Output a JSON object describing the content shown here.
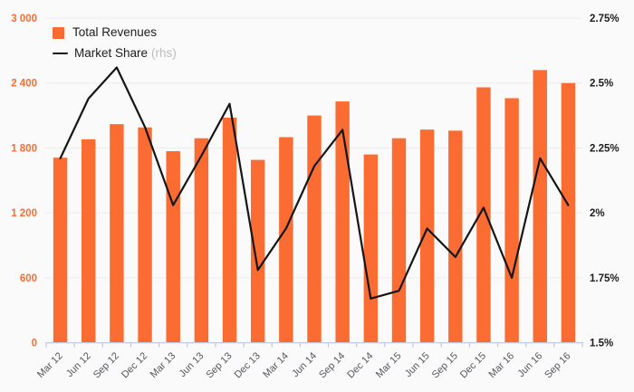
{
  "chart_data": {
    "type": "combo-bar-line",
    "title": "",
    "categories": [
      "Mar 12",
      "Jun 12",
      "Sep 12",
      "Dec 12",
      "Mar 13",
      "Jun 13",
      "Sep 13",
      "Dec 13",
      "Mar 14",
      "Jun 14",
      "Sep 14",
      "Dec 14",
      "Mar 15",
      "Jun 15",
      "Sep 15",
      "Dec 15",
      "Mar 16",
      "Jun 16",
      "Sep 16"
    ],
    "series": [
      {
        "name": "Total Revenues",
        "type": "bar",
        "axis": "left",
        "values": [
          1710,
          1880,
          2020,
          1990,
          1770,
          1890,
          2080,
          1690,
          1900,
          2100,
          2230,
          1740,
          1890,
          1970,
          1960,
          2360,
          2260,
          2520,
          2400
        ]
      },
      {
        "name": "Market Share",
        "type": "line",
        "axis": "right",
        "values": [
          2.21,
          2.44,
          2.56,
          2.33,
          2.03,
          2.22,
          2.42,
          1.78,
          1.94,
          2.18,
          2.32,
          1.67,
          1.7,
          1.94,
          1.83,
          2.02,
          1.75,
          2.21,
          2.03
        ]
      }
    ],
    "left_axis": {
      "min": 0,
      "max": 3000,
      "ticks": [
        "0",
        "600",
        "1 200",
        "1 800",
        "2 400",
        "3 000"
      ]
    },
    "right_axis": {
      "min": 1.5,
      "max": 2.75,
      "ticks": [
        "1.5%",
        "1.75%",
        "2%",
        "2.25%",
        "2.5%",
        "2.75%"
      ]
    },
    "grid": "horizontal",
    "legend_position": "top-left"
  },
  "legend": {
    "revenues_label": "Total Revenues",
    "market_share_label": "Market Share",
    "market_share_suffix": "(rhs)"
  },
  "colors": {
    "bar": "#fb6c32",
    "line": "#151515",
    "background": "#fafafa",
    "grid": "#ececec",
    "axis_line": "#c2cbe0",
    "left_axis_labels": "#fb6c32",
    "right_axis_labels": "#1d1d1d",
    "x_axis_labels": "#55565c",
    "legend_text": "#1c1c1c",
    "legend_muted": "#bcbcbc"
  }
}
